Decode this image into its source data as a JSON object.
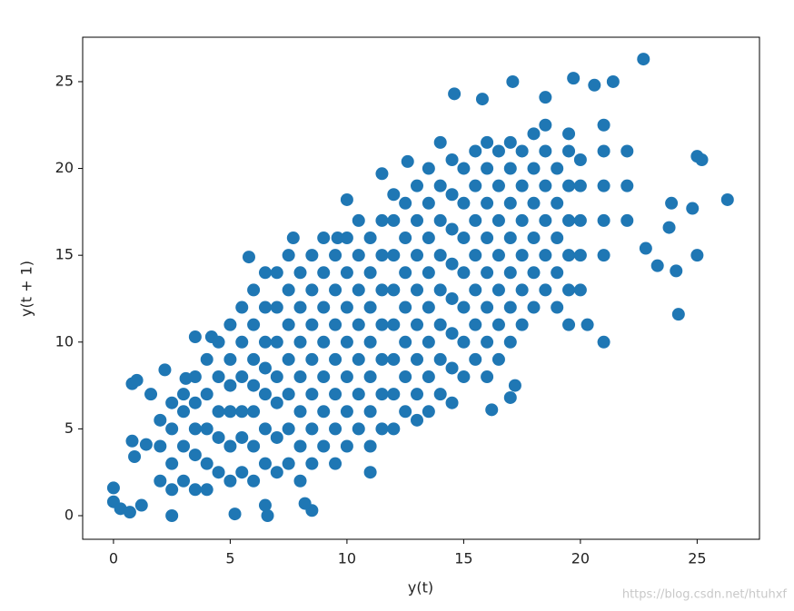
{
  "chart_data": {
    "type": "scatter",
    "xlabel": "y(t)",
    "ylabel": "y(t + 1)",
    "watermark": "https://blog.csdn.net/htuhxf",
    "color": "#1f77b4",
    "xlim": [
      -1.32,
      27.67
    ],
    "ylim": [
      -1.36,
      27.56
    ],
    "xticks": [
      0,
      5,
      10,
      15,
      20,
      25
    ],
    "yticks": [
      0,
      5,
      10,
      15,
      20,
      25
    ],
    "x": [
      22.7,
      19.7,
      17.1,
      14.6,
      15.8,
      18.5,
      20.6,
      21.4,
      26.3,
      25.0,
      25.2,
      24.8,
      23.9,
      23.8,
      24.1,
      24.2,
      25.0,
      23.3,
      22.8,
      21.0,
      20.3,
      19.5,
      16.2,
      17.2,
      0,
      0,
      0.3,
      0.7,
      1.2,
      2.5,
      5.2,
      6.6,
      6.5,
      8.5,
      8.2,
      0.8,
      1.0,
      1.6,
      2.2,
      3.1,
      0.8,
      1.4,
      0.9,
      11.0,
      10.0,
      5.8,
      7.7,
      3.5,
      4.2,
      9.6,
      17.0,
      12.6,
      14.0,
      11.5,
      2,
      2,
      2,
      2.5,
      2.5,
      2.5,
      2.5,
      3,
      3,
      3,
      3,
      3.5,
      3.5,
      3.5,
      3.5,
      3.5,
      4,
      4,
      4,
      4,
      4,
      4.5,
      4.5,
      4.5,
      4.5,
      4.5,
      5,
      5,
      5,
      5,
      5,
      5,
      5.5,
      5.5,
      5.5,
      5.5,
      5.5,
      5.5,
      6,
      6,
      6,
      6,
      6,
      6,
      6,
      6.5,
      6.5,
      6.5,
      6.5,
      6.5,
      6.5,
      6.5,
      7,
      7,
      7,
      7,
      7,
      7,
      7,
      7.5,
      7.5,
      7.5,
      7.5,
      7.5,
      7.5,
      7.5,
      8,
      8,
      8,
      8,
      8,
      8,
      8,
      8.5,
      8.5,
      8.5,
      8.5,
      8.5,
      8.5,
      8.5,
      9,
      9,
      9,
      9,
      9,
      9,
      9,
      9.5,
      9.5,
      9.5,
      9.5,
      9.5,
      9.5,
      9.5,
      10,
      10,
      10,
      10,
      10,
      10,
      10,
      10.5,
      10.5,
      10.5,
      10.5,
      10.5,
      10.5,
      10.5,
      11,
      11,
      11,
      11,
      11,
      11,
      11,
      11.5,
      11.5,
      11.5,
      11.5,
      11.5,
      11.5,
      11.5,
      12,
      12,
      12,
      12,
      12,
      12,
      12,
      12,
      12.5,
      12.5,
      12.5,
      12.5,
      12.5,
      12.5,
      12.5,
      13,
      13,
      13,
      13,
      13,
      13,
      13,
      13,
      13.5,
      13.5,
      13.5,
      13.5,
      13.5,
      13.5,
      13.5,
      13.5,
      14,
      14,
      14,
      14,
      14,
      14,
      14,
      14.5,
      14.5,
      14.5,
      14.5,
      14.5,
      14.5,
      14.5,
      14.5,
      15,
      15,
      15,
      15,
      15,
      15,
      15,
      15.5,
      15.5,
      15.5,
      15.5,
      15.5,
      15.5,
      15.5,
      16,
      16,
      16,
      16,
      16,
      16,
      16,
      16,
      16.5,
      16.5,
      16.5,
      16.5,
      16.5,
      16.5,
      16.5,
      17,
      17,
      17,
      17,
      17,
      17,
      17,
      17.5,
      17.5,
      17.5,
      17.5,
      17.5,
      17.5,
      18,
      18,
      18,
      18,
      18,
      18,
      18.5,
      18.5,
      18.5,
      18.5,
      18.5,
      18.5,
      19,
      19,
      19,
      19,
      19,
      19.5,
      19.5,
      19.5,
      19.5,
      19.5,
      19.5,
      20,
      20,
      20,
      20,
      20,
      21,
      21,
      21,
      21,
      21,
      22,
      22,
      22
    ],
    "y": [
      26.3,
      25.2,
      25.0,
      24.3,
      24.0,
      24.1,
      24.8,
      25.0,
      18.2,
      20.7,
      20.5,
      17.7,
      18.0,
      16.6,
      14.1,
      11.6,
      15.0,
      14.4,
      15.4,
      10.0,
      11.0,
      11.0,
      6.1,
      7.5,
      1.6,
      0.8,
      0.4,
      0.2,
      0.6,
      0.0,
      0.1,
      0.0,
      0.6,
      0.3,
      0.7,
      7.6,
      7.8,
      7.0,
      8.4,
      7.9,
      4.3,
      4.1,
      3.4,
      2.5,
      18.2,
      14.9,
      16.0,
      10.3,
      10.3,
      16.0,
      6.8,
      20.4,
      21.5,
      19.7,
      2,
      4,
      5.5,
      1.5,
      3,
      5,
      6.5,
      2,
      4,
      6,
      7,
      1.5,
      3.5,
      5,
      6.5,
      8,
      1.5,
      3,
      5,
      7,
      9,
      2.5,
      4.5,
      6,
      8,
      10,
      2,
      4,
      6,
      7.5,
      9,
      11,
      2.5,
      4.5,
      6,
      8,
      10,
      12,
      2,
      4,
      6,
      7.5,
      9,
      11,
      13,
      3,
      5,
      7,
      8.5,
      10,
      12,
      14,
      2.5,
      4.5,
      6.5,
      8,
      10,
      12,
      14,
      3,
      5,
      7,
      9,
      11,
      13,
      15,
      2,
      4,
      6,
      8,
      10,
      12,
      14,
      3,
      5,
      7,
      9,
      11,
      13,
      15,
      4,
      6,
      8,
      10,
      12,
      14,
      16,
      3,
      5,
      7,
      9,
      11,
      13,
      15,
      4,
      6,
      8,
      10,
      12,
      14,
      16,
      5,
      7,
      9,
      11,
      13,
      15,
      17,
      4,
      6,
      8,
      10,
      12,
      14,
      16,
      5,
      7,
      9,
      11,
      13,
      15,
      17,
      5,
      7,
      9,
      11,
      13,
      15,
      17,
      18.5,
      6,
      8,
      10,
      12,
      14,
      16,
      18,
      5.5,
      7,
      9,
      11,
      13,
      15,
      17,
      19,
      6,
      8,
      10,
      12,
      14,
      16,
      18,
      20,
      7,
      9,
      11,
      13,
      15,
      17,
      19,
      6.5,
      8.5,
      10.5,
      12.5,
      14.5,
      16.5,
      18.5,
      20.5,
      8,
      10,
      12,
      14,
      16,
      18,
      20,
      9,
      11,
      13,
      15,
      17,
      19,
      21,
      8,
      10,
      12,
      14,
      16,
      18,
      20,
      21.5,
      9,
      11,
      13,
      15,
      17,
      19,
      21,
      10,
      12,
      14,
      16,
      18,
      20,
      21.5,
      11,
      13,
      15,
      17,
      19,
      21,
      12,
      14,
      16,
      18,
      20,
      22,
      13,
      15,
      17,
      19,
      21,
      22.5,
      12,
      14,
      16,
      18,
      20,
      13,
      15,
      17,
      19,
      21,
      22,
      13,
      15,
      17,
      19,
      20.5,
      15,
      17,
      19,
      21,
      22.5,
      17,
      19,
      21
    ]
  }
}
